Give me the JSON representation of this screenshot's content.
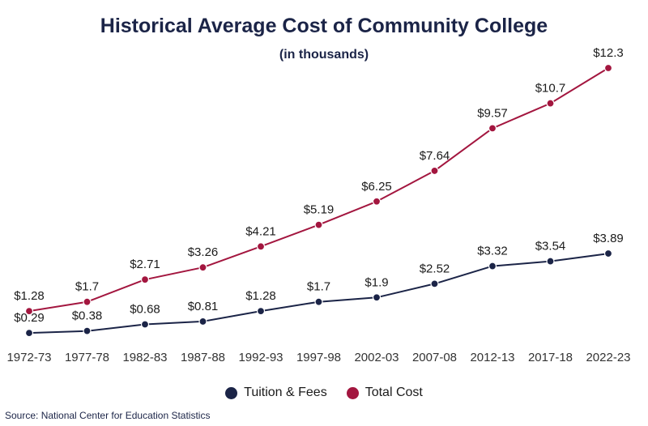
{
  "chart_data": {
    "type": "line",
    "title": "Historical Average Cost of Community College",
    "subtitle": "(in thousands)",
    "categories": [
      "1972-73",
      "1977-78",
      "1982-83",
      "1987-88",
      "1992-93",
      "1997-98",
      "2002-03",
      "2007-08",
      "2012-13",
      "2017-18",
      "2022-23"
    ],
    "series": [
      {
        "name": "Tuition & Fees",
        "color": "#1b2447",
        "values": [
          0.29,
          0.38,
          0.68,
          0.81,
          1.28,
          1.7,
          1.9,
          2.52,
          3.32,
          3.54,
          3.89
        ],
        "labels": [
          "$0.29",
          "$0.38",
          "$0.68",
          "$0.81",
          "$1.28",
          "$1.7",
          "$1.9",
          "$2.52",
          "$3.32",
          "$3.54",
          "$3.89"
        ]
      },
      {
        "name": "Total Cost",
        "color": "#a3163f",
        "values": [
          1.28,
          1.7,
          2.71,
          3.26,
          4.21,
          5.19,
          6.25,
          7.64,
          9.57,
          10.7,
          12.3
        ],
        "labels": [
          "$1.28",
          "$1.7",
          "$2.71",
          "$3.26",
          "$4.21",
          "$5.19",
          "$6.25",
          "$7.64",
          "$9.57",
          "$10.7",
          "$12.3"
        ]
      }
    ],
    "ylim": [
      0,
      12.3
    ],
    "grid": false,
    "legend": "bottom-center",
    "source": "Source: National Center for Education Statistics"
  }
}
